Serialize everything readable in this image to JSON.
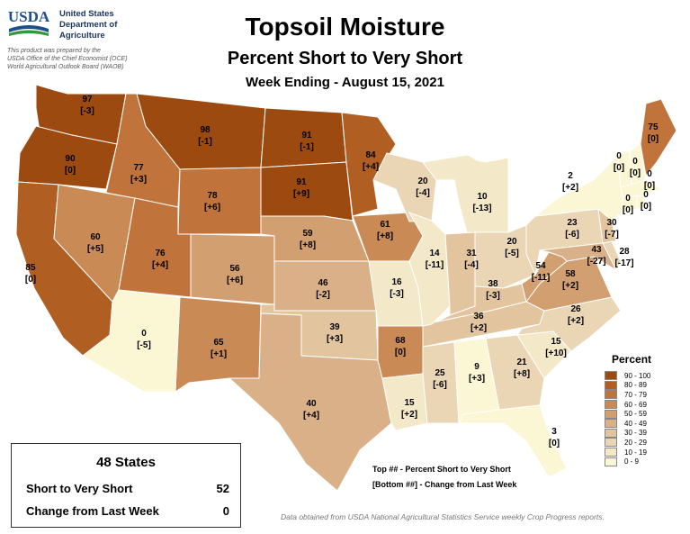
{
  "header": {
    "agency_lines": [
      "United States",
      "Department of",
      "Agriculture"
    ],
    "logo_text": "USDA",
    "note_lines": [
      "This product was prepared by the",
      "USDA Office of the Chief Economist (OCE)",
      "World Agricultural Outlook Board (WAOB)"
    ],
    "title": "Topsoil Moisture",
    "subtitle": "Percent Short to Very Short",
    "week": "Week Ending - August 15, 2021"
  },
  "states": [
    {
      "id": "WA",
      "value": "97",
      "change": "[-3]"
    },
    {
      "id": "OR",
      "value": "90",
      "change": "[0]"
    },
    {
      "id": "CA",
      "value": "85",
      "change": "[0]"
    },
    {
      "id": "ID",
      "value": "77",
      "change": "[+3]"
    },
    {
      "id": "NV",
      "value": "60",
      "change": "[+5]"
    },
    {
      "id": "MT",
      "value": "98",
      "change": "[-1]"
    },
    {
      "id": "WY",
      "value": "78",
      "change": "[+6]"
    },
    {
      "id": "UT",
      "value": "76",
      "change": "[+4]"
    },
    {
      "id": "AZ",
      "value": "0",
      "change": "[-5]"
    },
    {
      "id": "CO",
      "value": "56",
      "change": "[+6]"
    },
    {
      "id": "NM",
      "value": "65",
      "change": "[+1]"
    },
    {
      "id": "ND",
      "value": "91",
      "change": "[-1]"
    },
    {
      "id": "SD",
      "value": "91",
      "change": "[+9]"
    },
    {
      "id": "NE",
      "value": "59",
      "change": "[+8]"
    },
    {
      "id": "KS",
      "value": "46",
      "change": "[-2]"
    },
    {
      "id": "OK",
      "value": "39",
      "change": "[+3]"
    },
    {
      "id": "TX",
      "value": "40",
      "change": "[+4]"
    },
    {
      "id": "MN",
      "value": "84",
      "change": "[+4]"
    },
    {
      "id": "IA",
      "value": "61",
      "change": "[+8]"
    },
    {
      "id": "MO",
      "value": "16",
      "change": "[-3]"
    },
    {
      "id": "AR",
      "value": "68",
      "change": "[0]"
    },
    {
      "id": "LA",
      "value": "15",
      "change": "[+2]"
    },
    {
      "id": "WI",
      "value": "20",
      "change": "[-4]"
    },
    {
      "id": "IL",
      "value": "14",
      "change": "[-11]"
    },
    {
      "id": "MI",
      "value": "10",
      "change": "[-13]"
    },
    {
      "id": "IN",
      "value": "31",
      "change": "[-4]"
    },
    {
      "id": "OH",
      "value": "20",
      "change": "[-5]"
    },
    {
      "id": "KY",
      "value": "38",
      "change": "[-3]"
    },
    {
      "id": "TN",
      "value": "36",
      "change": "[+2]"
    },
    {
      "id": "MS",
      "value": "25",
      "change": "[-6]"
    },
    {
      "id": "AL",
      "value": "9",
      "change": "[+3]"
    },
    {
      "id": "GA",
      "value": "21",
      "change": "[+8]"
    },
    {
      "id": "FL",
      "value": "3",
      "change": "[0]"
    },
    {
      "id": "SC",
      "value": "15",
      "change": "[+10]"
    },
    {
      "id": "NC",
      "value": "26",
      "change": "[+2]"
    },
    {
      "id": "VA",
      "value": "58",
      "change": "[+2]"
    },
    {
      "id": "WV",
      "value": "54",
      "change": "[-11]"
    },
    {
      "id": "PA",
      "value": "23",
      "change": "[-6]"
    },
    {
      "id": "NY",
      "value": "2",
      "change": "[+2]"
    },
    {
      "id": "MD",
      "value": "43",
      "change": "[-27]"
    },
    {
      "id": "DE",
      "value": "28",
      "change": "[-17]"
    },
    {
      "id": "NJ",
      "value": "30",
      "change": "[-7]"
    },
    {
      "id": "VT",
      "value": "0",
      "change": "[0]"
    },
    {
      "id": "NH",
      "value": "0",
      "change": "[0]"
    },
    {
      "id": "ME",
      "value": "75",
      "change": "[0]"
    },
    {
      "id": "MA",
      "value": "0",
      "change": "[0]"
    },
    {
      "id": "CT",
      "value": "0",
      "change": "[0]"
    },
    {
      "id": "RI",
      "value": "0",
      "change": "[0]"
    }
  ],
  "legend": {
    "title": "Percent",
    "classes": [
      {
        "label": "90 - 100",
        "color": "#9c4a10"
      },
      {
        "label": "80 - 89",
        "color": "#b15e22"
      },
      {
        "label": "70 - 79",
        "color": "#c0743c"
      },
      {
        "label": "60 - 69",
        "color": "#c98a56"
      },
      {
        "label": "50 - 59",
        "color": "#d29f70"
      },
      {
        "label": "40 - 49",
        "color": "#d9b088"
      },
      {
        "label": "30 - 39",
        "color": "#e2c49f"
      },
      {
        "label": "20 - 29",
        "color": "#ead6b5"
      },
      {
        "label": "10 - 19",
        "color": "#f3e8c8"
      },
      {
        "label": "0 - 9",
        "color": "#fbf6d4"
      }
    ]
  },
  "summary": {
    "title": "48 States",
    "short_label": "Short to Very Short",
    "short_value": "52",
    "change_label": "Change from Last Week",
    "change_value": "0"
  },
  "key": {
    "top": "Top ## - Percent Short to Very Short",
    "bottom": "[Bottom ##] - Change from Last Week"
  },
  "source": "Data obtained from USDA National Agricultural Statistics Service weekly Crop Progress reports."
}
